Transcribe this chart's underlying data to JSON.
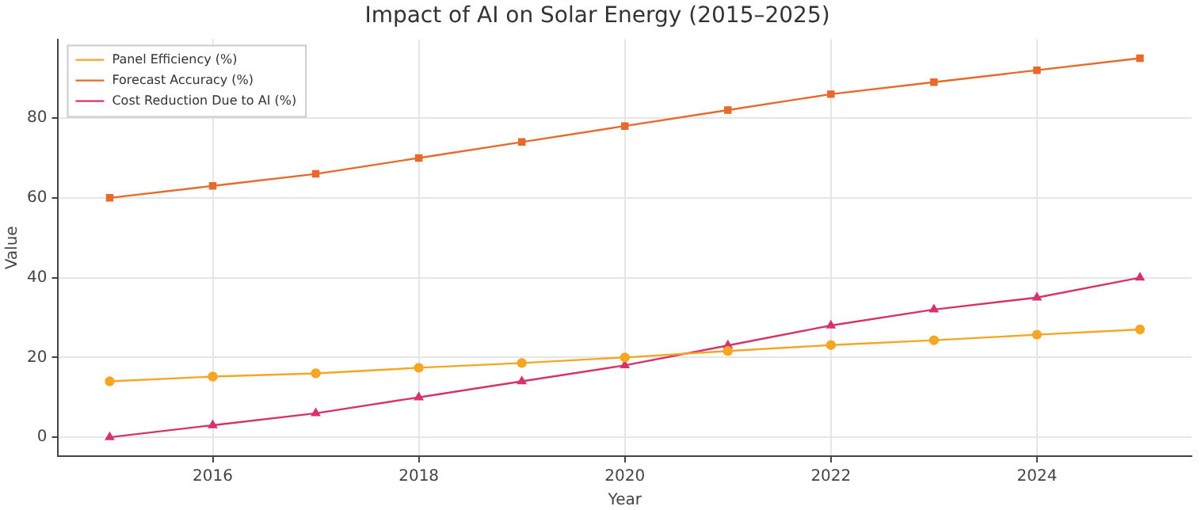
{
  "chart_data": {
    "type": "line",
    "title": "Impact of AI on Solar Energy (2015–2025)",
    "xlabel": "Year",
    "ylabel": "Value",
    "x": [
      2015,
      2016,
      2017,
      2018,
      2019,
      2020,
      2021,
      2022,
      2023,
      2024,
      2025
    ],
    "series": [
      {
        "name": "Panel Efficiency (%)",
        "color": "#f5a623",
        "marker": "circle",
        "values": [
          14,
          15.2,
          16,
          17.4,
          18.6,
          20,
          21.6,
          23.1,
          24.3,
          25.7,
          27
        ]
      },
      {
        "name": "Forecast Accuracy (%)",
        "color": "#e8692a",
        "marker": "square",
        "values": [
          60,
          63,
          66,
          70,
          74,
          78,
          82,
          86,
          89,
          92,
          95
        ]
      },
      {
        "name": "Cost Reduction Due to AI (%)",
        "color": "#d6336c",
        "marker": "triangle",
        "values": [
          0,
          3,
          6,
          10,
          14,
          18,
          23,
          28,
          32,
          35,
          40
        ]
      }
    ],
    "xlim": [
      2014.5,
      2025.5
    ],
    "xticks": [
      2016,
      2018,
      2020,
      2022,
      2024
    ],
    "ylim": [
      -4.75,
      99.75
    ],
    "yticks": [
      0,
      20,
      40,
      60,
      80
    ],
    "grid": true,
    "legend": "top left",
    "line_style": "solid"
  }
}
